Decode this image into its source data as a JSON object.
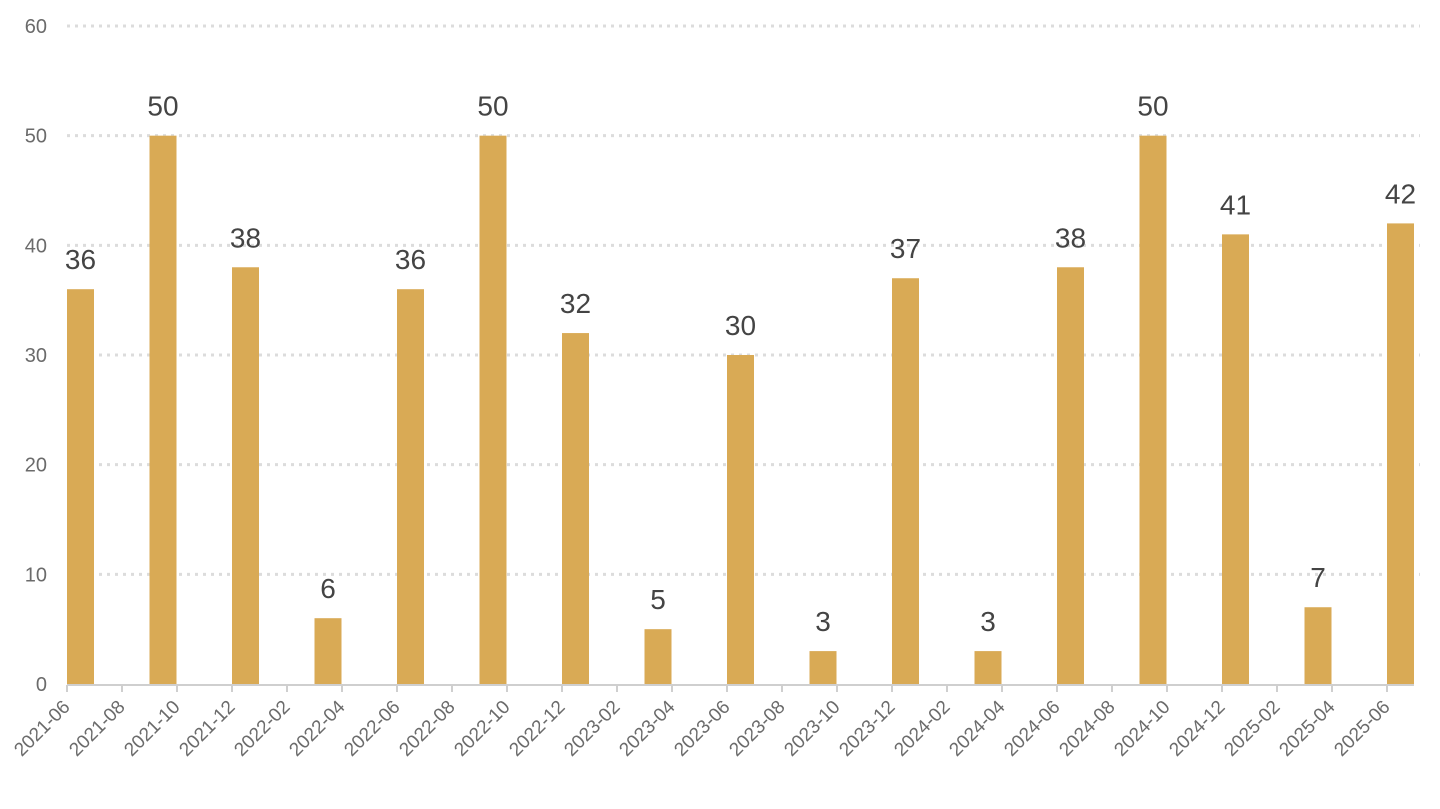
{
  "chart_data": {
    "type": "bar",
    "title": "",
    "xlabel": "",
    "ylabel": "",
    "ylim": [
      0,
      60
    ],
    "yticks": [
      0,
      10,
      20,
      30,
      40,
      50,
      60
    ],
    "grid": true,
    "bar_color": "#D9AA55",
    "x_tick_labels": [
      "2021-06",
      "2021-08",
      "2021-10",
      "2021-12",
      "2022-02",
      "2022-04",
      "2022-06",
      "2022-08",
      "2022-10",
      "2022-12",
      "2023-02",
      "2023-04",
      "2023-06",
      "2023-08",
      "2023-10",
      "2023-12",
      "2024-02",
      "2024-04",
      "2024-06",
      "2024-08",
      "2024-10",
      "2024-12",
      "2025-02",
      "2025-04",
      "2025-06"
    ],
    "bars": [
      {
        "x": "2021-06",
        "value": 36
      },
      {
        "x": "2021-09",
        "value": 50
      },
      {
        "x": "2021-12",
        "value": 38
      },
      {
        "x": "2022-03",
        "value": 6
      },
      {
        "x": "2022-06",
        "value": 36
      },
      {
        "x": "2022-09",
        "value": 50
      },
      {
        "x": "2022-12",
        "value": 32
      },
      {
        "x": "2023-03",
        "value": 5
      },
      {
        "x": "2023-06",
        "value": 30
      },
      {
        "x": "2023-09",
        "value": 3
      },
      {
        "x": "2023-12",
        "value": 37
      },
      {
        "x": "2024-03",
        "value": 3
      },
      {
        "x": "2024-06",
        "value": 38
      },
      {
        "x": "2024-09",
        "value": 50
      },
      {
        "x": "2024-12",
        "value": 41
      },
      {
        "x": "2025-03",
        "value": 7
      },
      {
        "x": "2025-06",
        "value": 42
      }
    ]
  }
}
